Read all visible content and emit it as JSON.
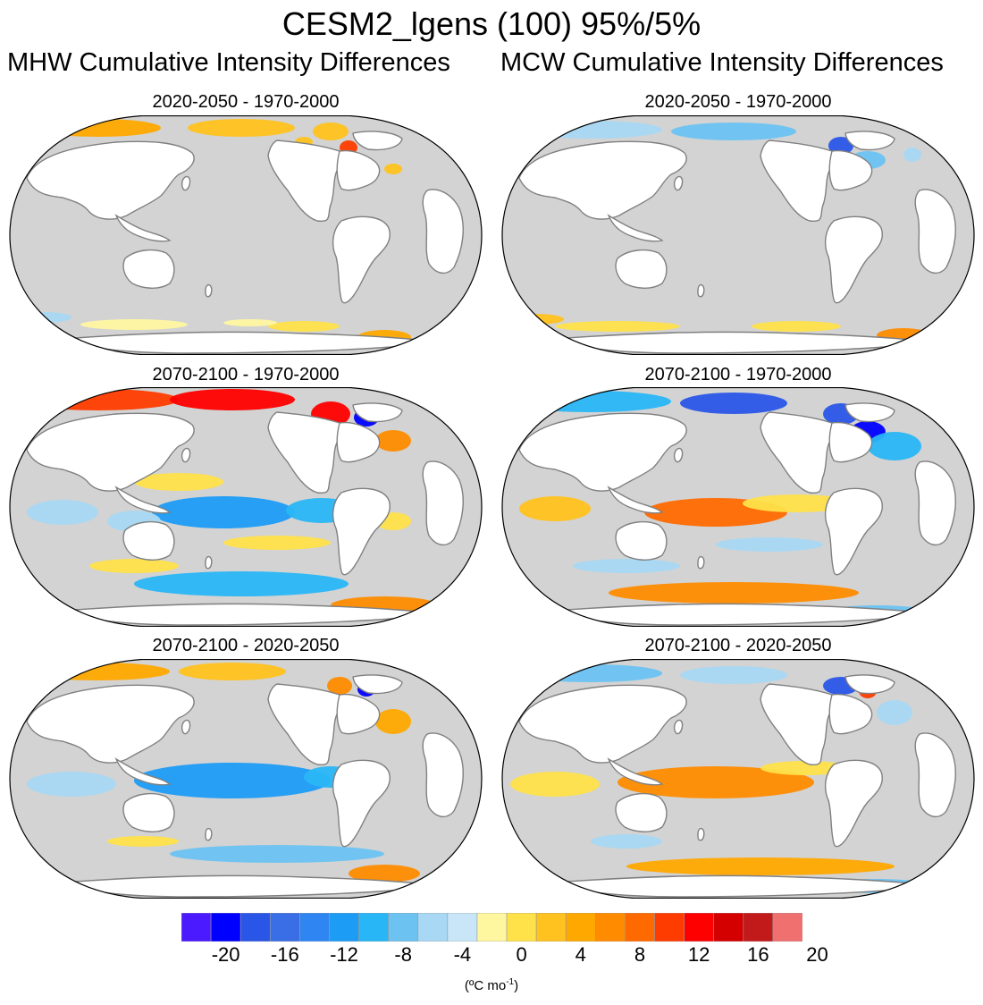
{
  "title": "CESM2_lgens (100) 95%/5%",
  "columns": {
    "left": "MHW Cumulative Intensity Differences",
    "right": "MCW Cumulative Intensity Differences"
  },
  "panels": [
    {
      "id": "mhw-1",
      "title": "2020-2050 - 1970-2000"
    },
    {
      "id": "mcw-1",
      "title": "2020-2050 - 1970-2000"
    },
    {
      "id": "mhw-2",
      "title": "2070-2100 - 1970-2000"
    },
    {
      "id": "mcw-2",
      "title": "2070-2100 - 1970-2000"
    },
    {
      "id": "mhw-3",
      "title": "2070-2100 - 2020-2050"
    },
    {
      "id": "mcw-3",
      "title": "2070-2100 - 2020-2050"
    }
  ],
  "colorbar": {
    "ticks": [
      "-20",
      "-16",
      "-12",
      "-8",
      "-4",
      "0",
      "4",
      "8",
      "12",
      "16",
      "20"
    ],
    "unit": "(ºC mo",
    "unit_sup": "-1",
    "unit_close": ")",
    "colors": [
      "#4b1aff",
      "#0000ff",
      "#2a56e8",
      "#3a6ee6",
      "#2f86f3",
      "#1c9cf5",
      "#29b6f6",
      "#6cc3f2",
      "#a8d8f3",
      "#c8e6f8",
      "#fff7a0",
      "#ffe24a",
      "#ffc21e",
      "#ffa800",
      "#ff8c00",
      "#ff6a00",
      "#ff3c00",
      "#ff0000",
      "#d40000",
      "#c21a1a",
      "#f07070"
    ]
  },
  "palette": {
    "ocean": "#d3d3d3",
    "land": "#ffffff",
    "coast": "#808080"
  }
}
